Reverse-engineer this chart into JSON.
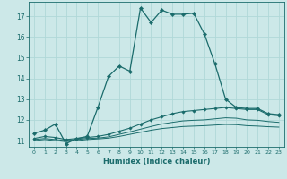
{
  "xlabel": "Humidex (Indice chaleur)",
  "background_color": "#cce8e8",
  "grid_color": "#b0d8d8",
  "line_color": "#1a6b6b",
  "xlim": [
    -0.5,
    23.5
  ],
  "ylim": [
    10.7,
    17.7
  ],
  "yticks": [
    11,
    12,
    13,
    14,
    15,
    16,
    17
  ],
  "xticks": [
    0,
    1,
    2,
    3,
    4,
    5,
    6,
    7,
    8,
    9,
    10,
    11,
    12,
    13,
    14,
    15,
    16,
    17,
    18,
    19,
    20,
    21,
    22,
    23
  ],
  "series1_x": [
    0,
    1,
    2,
    3,
    4,
    5,
    6,
    7,
    8,
    9,
    10,
    11,
    12,
    13,
    14,
    15,
    16,
    17,
    18,
    19,
    20,
    21,
    22,
    23
  ],
  "series1_y": [
    11.35,
    11.5,
    11.8,
    10.85,
    11.1,
    11.2,
    12.6,
    14.1,
    14.6,
    14.35,
    17.4,
    16.7,
    17.3,
    17.1,
    17.1,
    17.15,
    16.15,
    14.7,
    13.0,
    12.6,
    12.55,
    12.55,
    12.3,
    12.25
  ],
  "series2_x": [
    0,
    1,
    2,
    3,
    4,
    5,
    6,
    7,
    8,
    9,
    10,
    11,
    12,
    13,
    14,
    15,
    16,
    17,
    18,
    19,
    20,
    21,
    22,
    23
  ],
  "series2_y": [
    11.1,
    11.2,
    11.15,
    11.05,
    11.1,
    11.15,
    11.2,
    11.3,
    11.45,
    11.6,
    11.8,
    12.0,
    12.15,
    12.3,
    12.4,
    12.45,
    12.5,
    12.55,
    12.6,
    12.55,
    12.5,
    12.5,
    12.25,
    12.2
  ],
  "series3_x": [
    0,
    1,
    2,
    3,
    4,
    5,
    6,
    7,
    8,
    9,
    10,
    11,
    12,
    13,
    14,
    15,
    16,
    17,
    18,
    19,
    20,
    21,
    22,
    23
  ],
  "series3_y": [
    11.05,
    11.1,
    11.05,
    11.0,
    11.05,
    11.1,
    11.12,
    11.18,
    11.3,
    11.42,
    11.55,
    11.68,
    11.8,
    11.88,
    11.95,
    11.98,
    12.0,
    12.05,
    12.1,
    12.08,
    12.0,
    11.98,
    11.92,
    11.88
  ],
  "series4_x": [
    0,
    1,
    2,
    3,
    4,
    5,
    6,
    7,
    8,
    9,
    10,
    11,
    12,
    13,
    14,
    15,
    16,
    17,
    18,
    19,
    20,
    21,
    22,
    23
  ],
  "series4_y": [
    11.0,
    11.05,
    11.0,
    10.95,
    11.0,
    11.05,
    11.08,
    11.12,
    11.2,
    11.3,
    11.4,
    11.5,
    11.58,
    11.63,
    11.68,
    11.7,
    11.72,
    11.75,
    11.78,
    11.77,
    11.72,
    11.7,
    11.67,
    11.65
  ]
}
